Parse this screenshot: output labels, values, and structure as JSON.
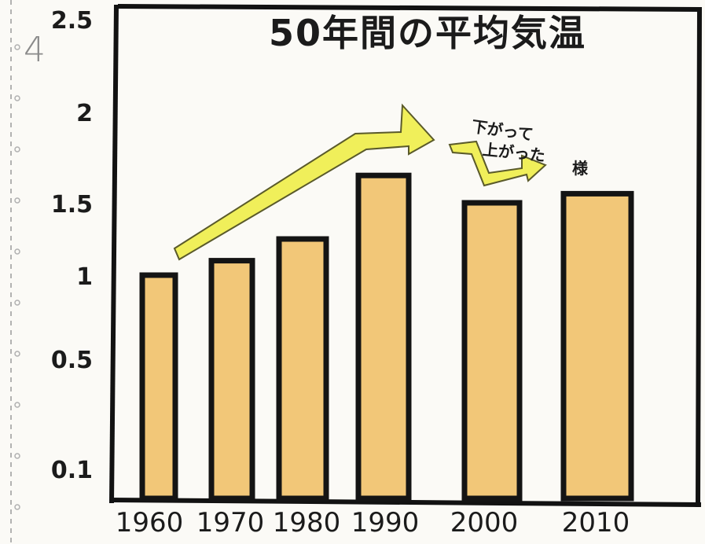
{
  "page_number": "4",
  "chart_data": {
    "type": "bar",
    "title": "50年間の平均気温",
    "categories": [
      "1960",
      "1970",
      "1980",
      "1990",
      "2000",
      "2010"
    ],
    "values": [
      1.0,
      1.1,
      1.25,
      1.65,
      1.5,
      1.55
    ],
    "ytick_labels": [
      "0.1",
      "0.5",
      "1",
      "1.5",
      "2",
      "2.5"
    ],
    "ytick_values": [
      0.1,
      0.5,
      1.0,
      1.5,
      2.0,
      2.5
    ],
    "ylim": [
      0.1,
      2.5
    ],
    "grid": false,
    "bar_fill": "#f2c778",
    "bar_stroke": "#141414",
    "arrow_color": "#f0ef5a",
    "annotations": [
      "下がって",
      "上がった",
      "様"
    ]
  }
}
